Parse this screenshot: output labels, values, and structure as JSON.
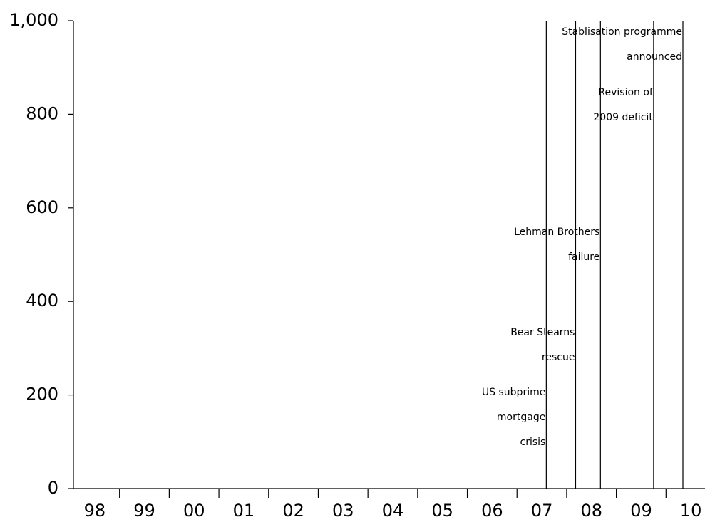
{
  "chart_data": {
    "type": "event-lines",
    "categories": [
      "98",
      "99",
      "00",
      "01",
      "02",
      "03",
      "04",
      "05",
      "06",
      "07",
      "08",
      "09",
      "10"
    ],
    "xlim": [
      1998,
      2011
    ],
    "ylim": [
      0,
      1000
    ],
    "yticks": [
      0,
      200,
      400,
      600,
      800,
      {
        "value": 1000,
        "label": "1,000"
      }
    ],
    "color": "#000000",
    "annotations": [
      {
        "x": 2007.59,
        "lines": [
          "US subprime",
          "mortgage",
          "crisis"
        ]
      },
      {
        "x": 2008.18,
        "lines": [
          "Bear Stearns",
          "rescue"
        ]
      },
      {
        "x": 2008.68,
        "lines": [
          "Lehman Brothers",
          "failure"
        ]
      },
      {
        "x": 2009.75,
        "lines": [
          "Revision of",
          "2009 deficit"
        ]
      },
      {
        "x": 2010.34,
        "lines": [
          "Stablisation programme",
          "announced"
        ]
      }
    ]
  }
}
